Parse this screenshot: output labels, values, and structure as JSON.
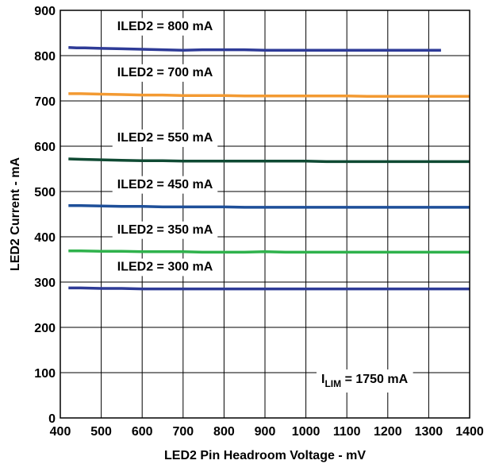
{
  "chart_data": {
    "type": "line",
    "title": "",
    "xlabel": "LED2 Pin Headroom Voltage - mV",
    "ylabel": "LED2 Current - mA",
    "xlim": [
      400,
      1400
    ],
    "ylim": [
      0,
      900
    ],
    "x_ticks": [
      400,
      500,
      600,
      700,
      800,
      900,
      1000,
      1100,
      1200,
      1300,
      1400
    ],
    "y_ticks": [
      0,
      100,
      200,
      300,
      400,
      500,
      600,
      700,
      800,
      900
    ],
    "grid": true,
    "annotation": {
      "main": "I",
      "sub": "LIM",
      "rest": " = 1750 mA"
    },
    "series": [
      {
        "name": "ILED2 = 800 mA",
        "color": "#2e3b97",
        "x": [
          420,
          440,
          460,
          500,
          550,
          600,
          650,
          700,
          750,
          800,
          850,
          900,
          950,
          1000,
          1050,
          1100,
          1150,
          1200,
          1250,
          1300,
          1330
        ],
        "y": [
          818,
          817,
          817,
          816,
          815,
          814,
          813,
          812,
          813,
          813,
          813,
          812,
          812,
          812,
          812,
          812,
          812,
          812,
          812,
          812,
          812
        ]
      },
      {
        "name": "ILED2 = 700 mA",
        "color": "#f39a32",
        "x": [
          420,
          450,
          500,
          550,
          600,
          650,
          700,
          750,
          800,
          850,
          900,
          950,
          1000,
          1050,
          1100,
          1150,
          1200,
          1250,
          1300,
          1350,
          1400
        ],
        "y": [
          716,
          716,
          715,
          714,
          713,
          713,
          712,
          712,
          712,
          711,
          711,
          711,
          711,
          711,
          711,
          710,
          710,
          710,
          710,
          710,
          710
        ]
      },
      {
        "name": "ILED2 = 550 mA",
        "color": "#0f4a33",
        "x": [
          420,
          450,
          500,
          550,
          600,
          650,
          700,
          750,
          800,
          850,
          900,
          950,
          1000,
          1050,
          1100,
          1150,
          1200,
          1250,
          1300,
          1350,
          1400
        ],
        "y": [
          572,
          571,
          570,
          569,
          568,
          568,
          567,
          567,
          567,
          567,
          567,
          567,
          567,
          566,
          566,
          566,
          566,
          566,
          566,
          566,
          566
        ]
      },
      {
        "name": "ILED2 = 450 mA",
        "color": "#1e4f99",
        "x": [
          420,
          450,
          500,
          550,
          600,
          650,
          700,
          750,
          800,
          850,
          900,
          950,
          1000,
          1050,
          1100,
          1150,
          1200,
          1250,
          1300,
          1350,
          1400
        ],
        "y": [
          469,
          469,
          468,
          467,
          467,
          466,
          466,
          466,
          466,
          465,
          465,
          465,
          465,
          465,
          465,
          465,
          465,
          465,
          465,
          465,
          465
        ]
      },
      {
        "name": "ILED2 = 350 mA",
        "color": "#2fb24c",
        "x": [
          420,
          450,
          500,
          550,
          600,
          650,
          700,
          750,
          800,
          850,
          900,
          950,
          1000,
          1050,
          1100,
          1150,
          1200,
          1250,
          1300,
          1350,
          1400
        ],
        "y": [
          369,
          369,
          368,
          368,
          367,
          367,
          367,
          366,
          366,
          366,
          367,
          366,
          366,
          366,
          366,
          366,
          366,
          366,
          366,
          366,
          366
        ]
      },
      {
        "name": "ILED2 = 300 mA",
        "color": "#2e3b97",
        "x": [
          420,
          450,
          500,
          550,
          600,
          650,
          700,
          750,
          800,
          850,
          900,
          950,
          1000,
          1050,
          1100,
          1150,
          1200,
          1250,
          1300,
          1350,
          1400
        ],
        "y": [
          287,
          287,
          286,
          286,
          285,
          285,
          285,
          285,
          285,
          285,
          285,
          285,
          285,
          285,
          285,
          285,
          285,
          285,
          285,
          285,
          285
        ]
      }
    ]
  }
}
